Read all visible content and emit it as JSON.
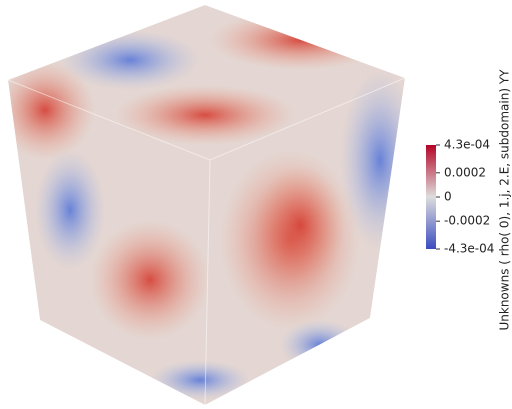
{
  "colorbar": {
    "title": "Unknowns ( rho( 0), 1.j, 2.E, subdomain) YY",
    "range": [
      -0.00043,
      0.00043
    ],
    "ticks": [
      {
        "value": 0.00043,
        "label": "4.3e-04"
      },
      0.0002,
      0,
      -0.0002,
      {
        "value": -0.00043,
        "label": "-4.3e-04"
      }
    ]
  }
}
